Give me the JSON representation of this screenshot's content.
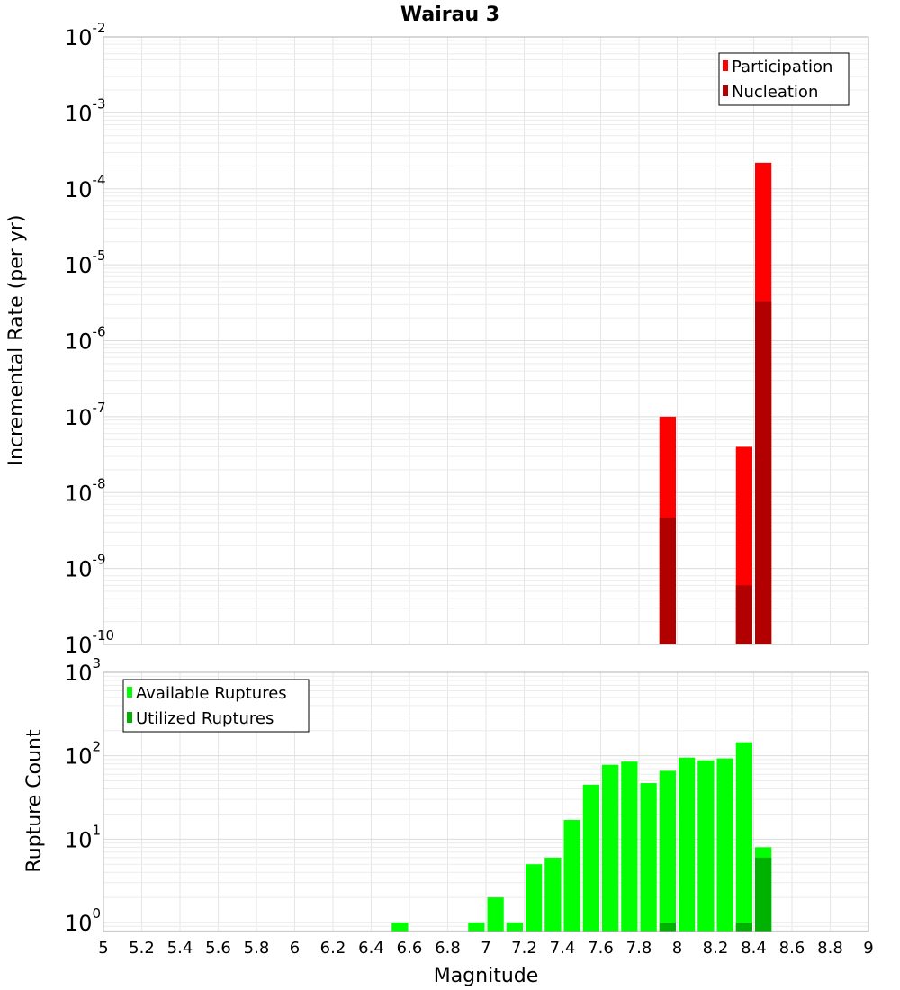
{
  "chart_data": [
    {
      "type": "bar",
      "title": "Wairau 3",
      "ylabel": "Incremental Rate (per yr)",
      "yscale": "log",
      "ylim": [
        1e-10,
        0.01
      ],
      "xlim": [
        5,
        9
      ],
      "bin_width": 0.1,
      "grid": true,
      "legend_position": "top-right",
      "y_tick_exponents": [
        "-10",
        "-9",
        "-8",
        "-7",
        "-6",
        "-5",
        "-4",
        "-3",
        "-2"
      ],
      "series": [
        {
          "name": "Participation",
          "color": "#ff0000",
          "x": [
            7.95,
            8.35,
            8.45
          ],
          "values": [
            1e-07,
            4e-08,
            0.00022
          ]
        },
        {
          "name": "Nucleation",
          "color": "#b20000",
          "x": [
            7.95,
            8.35,
            8.45
          ],
          "values": [
            4.7e-09,
            6e-10,
            3.3e-06
          ]
        }
      ]
    },
    {
      "type": "bar",
      "xlabel": "Magnitude",
      "ylabel": "Rupture Count",
      "yscale": "log",
      "ylim": [
        0.78,
        1000
      ],
      "xlim": [
        5,
        9
      ],
      "bin_width": 0.1,
      "grid": true,
      "legend_position": "top-left",
      "y_tick_exponents": [
        "0",
        "1",
        "2",
        "3"
      ],
      "x_ticks": [
        "5",
        "5.2",
        "5.4",
        "5.6",
        "5.8",
        "6",
        "6.2",
        "6.4",
        "6.6",
        "6.8",
        "7",
        "7.2",
        "7.4",
        "7.6",
        "7.8",
        "8",
        "8.2",
        "8.4",
        "8.6",
        "8.8",
        "9"
      ],
      "series": [
        {
          "name": "Available Ruptures",
          "color": "#00ff00",
          "x": [
            6.55,
            6.95,
            7.05,
            7.15,
            7.25,
            7.35,
            7.45,
            7.55,
            7.65,
            7.75,
            7.85,
            7.95,
            8.05,
            8.15,
            8.25,
            8.35,
            8.45
          ],
          "values": [
            1,
            1,
            2,
            1,
            5,
            6,
            17,
            45,
            78,
            85,
            47,
            66,
            95,
            88,
            93,
            145,
            8
          ]
        },
        {
          "name": "Utilized Ruptures",
          "color": "#00b200",
          "x": [
            7.95,
            8.35,
            8.45
          ],
          "values": [
            1,
            1,
            6
          ]
        }
      ]
    }
  ]
}
